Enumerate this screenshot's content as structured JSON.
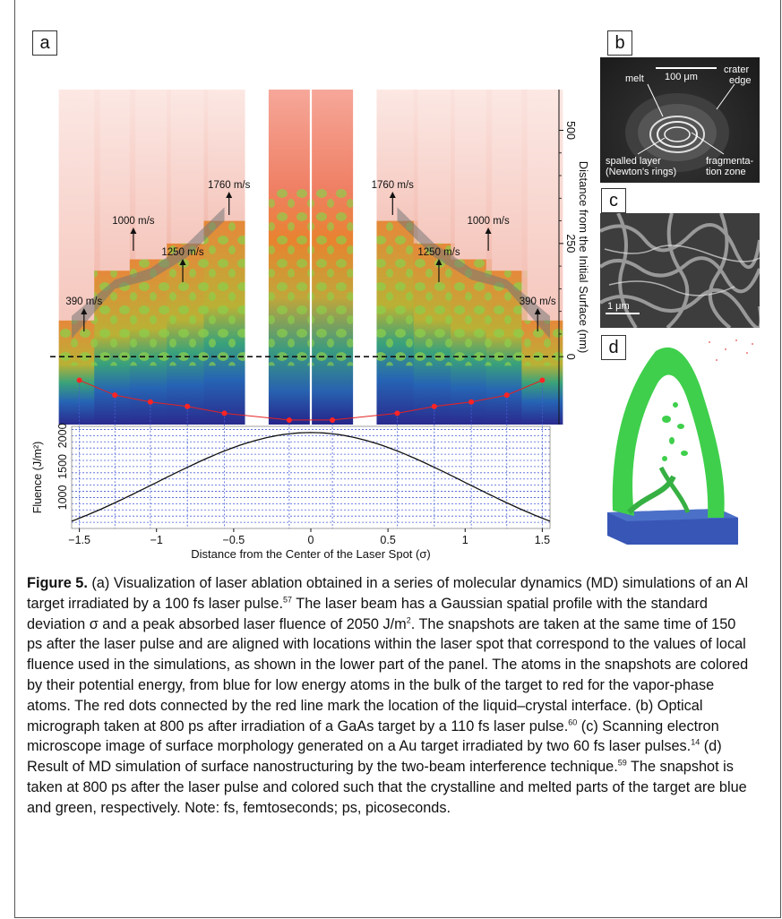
{
  "panels": {
    "a": "a",
    "b": "b",
    "c": "c",
    "d": "d"
  },
  "panel_b": {
    "scale": "100 μm",
    "melt": "melt",
    "crater": [
      "crater",
      "edge"
    ],
    "spalled": [
      "spalled layer",
      "(Newton's rings)"
    ],
    "fragmentation": [
      "fragmenta-",
      "tion zone"
    ]
  },
  "panel_c": {
    "scale": "1 μm"
  },
  "chart_data": [
    {
      "type": "line",
      "title": "",
      "xlabel": "Distance from the Center of the Laser Spot (σ)",
      "ylabel": "Fluence (J/m²)",
      "xlim": [
        -1.55,
        1.55
      ],
      "ylim": [
        500,
        2150
      ],
      "xticks": [
        -1.5,
        -1,
        -0.5,
        0,
        0.5,
        1,
        1.5
      ],
      "xtick_labels": [
        "−1.5",
        "−1",
        "−0.5",
        "0",
        "0.5",
        "1",
        "1.5"
      ],
      "yticks": [
        1000,
        1500,
        2000
      ],
      "ytick_labels": [
        "1000",
        "1500",
        "2000"
      ],
      "grid": true,
      "series": [
        {
          "function": "gaussian",
          "peak": 2050,
          "sigma": 1
        }
      ]
    },
    {
      "type": "scatter",
      "xlabel": "",
      "ylabel": "Distance from the Initial Surface (nm)",
      "ylim": [
        -150,
        590
      ],
      "yticks": [
        0,
        250,
        500
      ],
      "ytick_labels": [
        "0",
        "250",
        "500"
      ],
      "velocity_labels": [
        {
          "x": -1.47,
          "text": "390 m/s"
        },
        {
          "x": -1.15,
          "text": "1000 m/s"
        },
        {
          "x": -0.83,
          "text": "1250 m/s"
        },
        {
          "x": -0.53,
          "text": "1760 m/s"
        },
        {
          "x": 0.53,
          "text": "1760 m/s"
        },
        {
          "x": 0.83,
          "text": "1250 m/s"
        },
        {
          "x": 1.15,
          "text": "1000 m/s"
        },
        {
          "x": 1.47,
          "text": "390 m/s"
        }
      ],
      "interface_points": [
        {
          "x": -1.5,
          "y": -52
        },
        {
          "x": -1.27,
          "y": -85
        },
        {
          "x": -1.04,
          "y": -100
        },
        {
          "x": -0.8,
          "y": -110
        },
        {
          "x": -0.56,
          "y": -125
        },
        {
          "x": -0.14,
          "y": -140
        },
        {
          "x": 0.14,
          "y": -140
        },
        {
          "x": 0.56,
          "y": -125
        },
        {
          "x": 0.8,
          "y": -110
        },
        {
          "x": 1.04,
          "y": -100
        },
        {
          "x": 1.27,
          "y": -85
        },
        {
          "x": 1.5,
          "y": -52
        }
      ]
    }
  ],
  "caption": {
    "label": "Figure 5.",
    "p1": "(a) Visualization of laser ablation obtained in a series of molecular dynamics (MD) simulations of an Al target irradiated by a 100 fs laser pulse.",
    "r1": "57",
    "p2": " The laser beam has a Gaussian spatial profile with the standard deviation σ and a peak absorbed laser fluence of 2050 J/m",
    "sq": "2",
    "p3": ". The snapshots are taken at the same time of 150 ps after the laser pulse and are aligned with locations within the laser spot that correspond to the values of local fluence used in the simulations, as shown in the lower part of the panel. The atoms in the snapshots are colored by their potential energy, from blue for low energy atoms in the bulk of the target to red for the vapor-phase atoms. The red dots connected by the red line mark the location of the liquid–crystal interface. (b) Optical micrograph taken at 800 ps after irradiation of a GaAs target by a 110 fs laser pulse.",
    "r2": "60",
    "p4": " (c) Scanning electron microscope image of surface morphology generated on a Au target irradiated by two 60 fs laser pulses.",
    "r3": "14",
    "p5": " (d) Result of MD simulation of surface nanostructuring by the two-beam interference technique.",
    "r4": "59",
    "p6": " The snapshot is taken at 800 ps after the laser pulse and colored such that the crystalline and melted parts of the target are blue and green, respectively. Note: fs, femtoseconds; ps, picoseconds."
  }
}
